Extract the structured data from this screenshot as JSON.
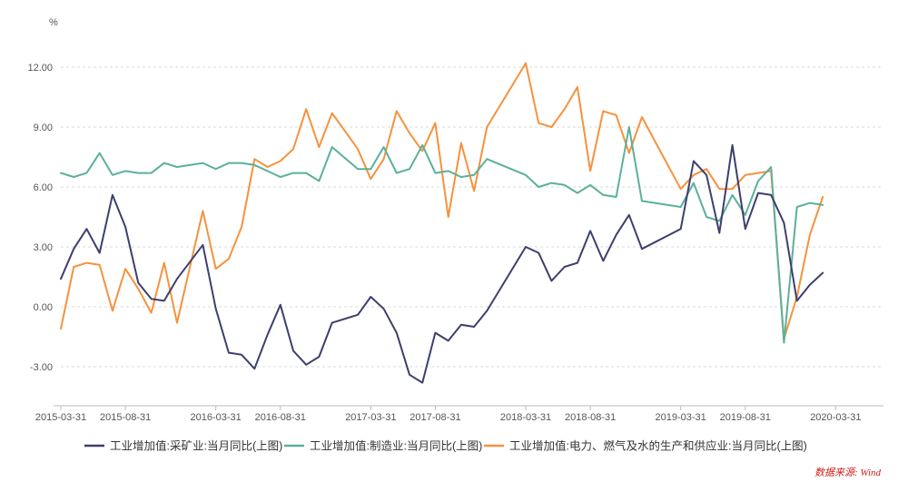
{
  "chart_data": {
    "type": "line",
    "y_unit": "%",
    "ylim": [
      -4.5,
      13.5
    ],
    "y_ticks": [
      12.0,
      9.0,
      6.0,
      3.0,
      0.0,
      -3.0
    ],
    "y_tick_labels": [
      "12.00",
      "9.00",
      "6.00",
      "3.00",
      "0.00",
      "-3.00"
    ],
    "grid": "horizontal-dashed",
    "legend_position": "bottom",
    "x": [
      "2015-03-31",
      "2015-04-30",
      "2015-05-31",
      "2015-06-30",
      "2015-07-31",
      "2015-08-31",
      "2015-09-30",
      "2015-10-31",
      "2015-11-30",
      "2015-12-31",
      "2016-01-31",
      "2016-02-29",
      "2016-03-31",
      "2016-04-30",
      "2016-05-31",
      "2016-06-30",
      "2016-07-31",
      "2016-08-31",
      "2016-09-30",
      "2016-10-31",
      "2016-11-30",
      "2016-12-31",
      "2017-01-31",
      "2017-02-28",
      "2017-03-31",
      "2017-04-30",
      "2017-05-31",
      "2017-06-30",
      "2017-07-31",
      "2017-08-31",
      "2017-09-30",
      "2017-10-31",
      "2017-11-30",
      "2017-12-31",
      "2018-01-31",
      "2018-02-28",
      "2018-03-31",
      "2018-04-30",
      "2018-05-31",
      "2018-06-30",
      "2018-07-31",
      "2018-08-31",
      "2018-09-30",
      "2018-10-31",
      "2018-11-30",
      "2018-12-31",
      "2019-01-31",
      "2019-02-28",
      "2019-03-31",
      "2019-04-30",
      "2019-05-31",
      "2019-06-30",
      "2019-07-31",
      "2019-08-31",
      "2019-09-30",
      "2019-10-31",
      "2019-11-30",
      "2019-12-31",
      "2020-01-31",
      "2020-02-29",
      "2020-03-31",
      "2020-04-30",
      "2020-05-31",
      "2020-06-30"
    ],
    "x_tick_labels": [
      "2015-03-31",
      "2015-08-31",
      "2016-03-31",
      "2016-08-31",
      "2017-03-31",
      "2017-08-31",
      "2018-03-31",
      "2018-08-31",
      "2019-03-31",
      "2019-08-31",
      "2020-03-31"
    ],
    "x_tick_indices": [
      0,
      5,
      12,
      17,
      24,
      29,
      36,
      41,
      48,
      53,
      60
    ],
    "series": [
      {
        "name": "工业增加值:采矿业:当月同比(上图)",
        "color": "#3d3f6e",
        "values": [
          1.4,
          2.9,
          3.9,
          2.7,
          5.6,
          4.0,
          1.2,
          0.4,
          0.3,
          1.4,
          null,
          3.1,
          -0.1,
          -2.3,
          -2.4,
          -3.1,
          -1.4,
          0.1,
          -2.2,
          -2.9,
          -2.5,
          -0.8,
          null,
          -0.4,
          0.5,
          -0.1,
          -1.3,
          -3.4,
          -3.8,
          -1.3,
          -1.7,
          -0.9,
          -1.0,
          -0.2,
          null,
          null,
          3.0,
          2.7,
          1.3,
          2.0,
          2.2,
          3.8,
          2.3,
          3.6,
          4.6,
          2.9,
          null,
          null,
          3.9,
          7.3,
          6.6,
          3.7,
          8.1,
          3.9,
          5.7,
          5.6,
          4.2,
          0.3,
          1.1,
          1.7,
          null,
          null,
          null,
          null
        ]
      },
      {
        "name": "工业增加值:制造业:当月同比(上图)",
        "color": "#5ab09b",
        "values": [
          6.7,
          6.5,
          6.7,
          7.7,
          6.6,
          6.8,
          6.7,
          6.7,
          7.2,
          7.0,
          null,
          7.2,
          6.9,
          7.2,
          7.2,
          7.1,
          6.8,
          6.5,
          6.7,
          6.7,
          6.3,
          8.0,
          null,
          6.9,
          6.9,
          8.0,
          6.7,
          6.9,
          8.1,
          6.7,
          6.8,
          6.5,
          6.6,
          7.4,
          null,
          null,
          6.6,
          6.0,
          6.2,
          6.1,
          5.7,
          6.1,
          5.6,
          5.5,
          9.0,
          5.3,
          null,
          null,
          5.0,
          6.2,
          4.5,
          4.3,
          5.6,
          4.6,
          6.3,
          7.0,
          -1.8,
          5.0,
          5.2,
          5.1,
          null,
          null,
          null,
          null
        ]
      },
      {
        "name": "工业增加值:电力、燃气及水的生产和供应业:当月同比(上图)",
        "color": "#f5923e",
        "values": [
          -1.1,
          2.0,
          2.2,
          2.1,
          -0.2,
          1.9,
          0.9,
          -0.3,
          2.2,
          -0.8,
          null,
          4.8,
          1.9,
          2.4,
          4.0,
          7.4,
          7.0,
          7.3,
          7.9,
          9.9,
          8.0,
          9.7,
          null,
          7.9,
          6.4,
          7.4,
          9.8,
          8.7,
          7.8,
          9.2,
          4.5,
          8.2,
          5.8,
          9.0,
          null,
          null,
          12.2,
          9.2,
          9.0,
          9.9,
          11.0,
          6.8,
          9.8,
          9.6,
          7.7,
          9.5,
          null,
          null,
          5.9,
          6.6,
          6.9,
          5.9,
          5.9,
          6.6,
          6.7,
          6.8,
          -1.6,
          0.5,
          3.6,
          5.5,
          null,
          null,
          null,
          null
        ]
      }
    ]
  },
  "source": "数据来源: Wind"
}
